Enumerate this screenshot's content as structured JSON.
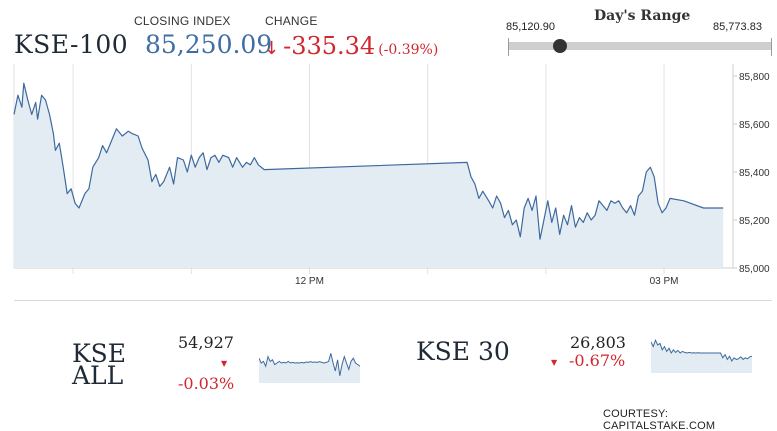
{
  "header": {
    "index_name": "KSE-100",
    "closing_label": "CLOSING INDEX",
    "closing_value": "85,250.09",
    "change_label": "CHANGE",
    "change_arrow": "↓",
    "change_value": "-335.34",
    "change_pct": "(-0.39%)"
  },
  "days_range": {
    "title": "Day's Range",
    "low": "85,120.90",
    "high": "85,773.83",
    "low_value": 85120.9,
    "high_value": 85773.83,
    "current_value": 85250.09
  },
  "colors": {
    "line": "#3d6a9e",
    "fill": "#e3ebf3",
    "negative": "#d0282e",
    "index_blue": "#3f6ea6",
    "grid": "#e2e2e2"
  },
  "chart_data": {
    "type": "area",
    "x_tick_labels": [
      "12 PM",
      "03 PM"
    ],
    "y_tick_labels": [
      "85,000",
      "85,200",
      "85,400",
      "85,600",
      "85,800"
    ],
    "ylim": [
      85000,
      85850
    ],
    "x_range_minutes": [
      570,
      935
    ],
    "grid": true,
    "series": [
      {
        "x": [
          570,
          572,
          574,
          575,
          577,
          579,
          581,
          582,
          584,
          586,
          588,
          590,
          591,
          593,
          595,
          597,
          599,
          601,
          603,
          606,
          608,
          610,
          613,
          615,
          617,
          620,
          622,
          625,
          628,
          630,
          633,
          635,
          638,
          640,
          642,
          644,
          646,
          649,
          651,
          653,
          656,
          658,
          660,
          662,
          664,
          666,
          668,
          670,
          672,
          674,
          676,
          679,
          681,
          683,
          686,
          688,
          690,
          692,
          694,
          697,
          800,
          802,
          804,
          806,
          808,
          811,
          813,
          815,
          817,
          819,
          821,
          823,
          825,
          827,
          829,
          831,
          833,
          835,
          837,
          839,
          841,
          843,
          845,
          847,
          849,
          851,
          853,
          855,
          857,
          859,
          861,
          863,
          865,
          867,
          869,
          871,
          873,
          875,
          877,
          879,
          881,
          883,
          885,
          887,
          889,
          891,
          893,
          895,
          897,
          899,
          901,
          903,
          910,
          920,
          930
        ],
        "y": [
          85640,
          85720,
          85670,
          85770,
          85700,
          85640,
          85690,
          85620,
          85720,
          85700,
          85640,
          85560,
          85490,
          85520,
          85420,
          85310,
          85330,
          85270,
          85250,
          85310,
          85330,
          85420,
          85460,
          85510,
          85480,
          85540,
          85580,
          85550,
          85570,
          85560,
          85550,
          85500,
          85450,
          85360,
          85390,
          85340,
          85360,
          85420,
          85350,
          85460,
          85450,
          85400,
          85470,
          85420,
          85460,
          85480,
          85410,
          85460,
          85470,
          85440,
          85470,
          85460,
          85420,
          85460,
          85420,
          85440,
          85430,
          85460,
          85430,
          85410,
          85440,
          85380,
          85350,
          85290,
          85320,
          85280,
          85250,
          85300,
          85270,
          85210,
          85240,
          85180,
          85200,
          85130,
          85250,
          85290,
          85240,
          85300,
          85120,
          85200,
          85280,
          85190,
          85250,
          85140,
          85220,
          85180,
          85260,
          85170,
          85210,
          85190,
          85230,
          85200,
          85220,
          85280,
          85260,
          85240,
          85280,
          85270,
          85280,
          85250,
          85230,
          85260,
          85220,
          85300,
          85320,
          85400,
          85420,
          85380,
          85270,
          85230,
          85250,
          85290,
          85280,
          85250,
          85250
        ]
      }
    ]
  },
  "mini_cards": [
    {
      "name_line1": "KSE",
      "name_line2": "ALL",
      "value": "54,927",
      "arrow": "▼",
      "change": "-0.03%",
      "spark": [
        0.35,
        0.5,
        0.45,
        0.6,
        0.3,
        0.45,
        0.4,
        0.55,
        0.5,
        0.45,
        0.5,
        0.48,
        0.5,
        0.45,
        0.5,
        0.48,
        0.5,
        0.49,
        0.5,
        0.48,
        0.5,
        0.47,
        0.48,
        0.46,
        0.48,
        0.47,
        0.48,
        0.46,
        0.48,
        0.5,
        0.48,
        0.45,
        0.2,
        0.5,
        0.75,
        0.4,
        0.9,
        0.55,
        0.3,
        0.5,
        0.7,
        0.45,
        0.35,
        0.5,
        0.55,
        0.6
      ]
    },
    {
      "name_line1": "KSE 30",
      "name_line2": "",
      "value": "26,803",
      "arrow": "▼",
      "change": "-0.67%",
      "spark": [
        0.15,
        0.3,
        0.1,
        0.25,
        0.2,
        0.4,
        0.3,
        0.45,
        0.35,
        0.5,
        0.4,
        0.48,
        0.42,
        0.5,
        0.45,
        0.48,
        0.5,
        0.48,
        0.5,
        0.49,
        0.5,
        0.49,
        0.5,
        0.5,
        0.5,
        0.5,
        0.5,
        0.5,
        0.5,
        0.5,
        0.5,
        0.5,
        0.65,
        0.55,
        0.7,
        0.6,
        0.75,
        0.65,
        0.7,
        0.68,
        0.62,
        0.7,
        0.65,
        0.68,
        0.62,
        0.6
      ]
    }
  ],
  "footer": {
    "courtesy": "COURTESY: CAPITALSTAKE.COM"
  }
}
